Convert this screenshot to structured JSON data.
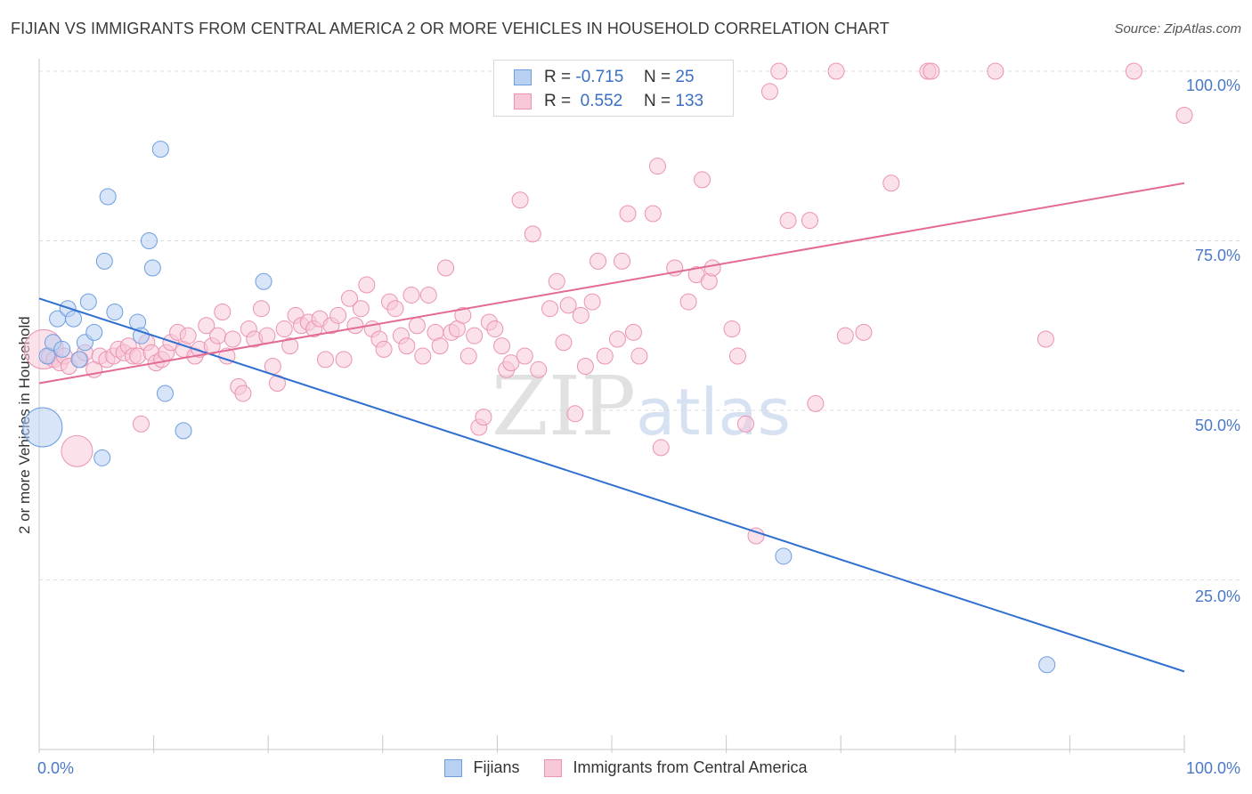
{
  "title": "FIJIAN VS IMMIGRANTS FROM CENTRAL AMERICA 2 OR MORE VEHICLES IN HOUSEHOLD CORRELATION CHART",
  "source": "Source: ZipAtlas.com",
  "watermark": "ZIPatlas",
  "legend_top": {
    "rows": [
      {
        "r_label": "R =",
        "r_value": "-0.715",
        "n_label": "N =",
        "n_value": "25"
      },
      {
        "r_label": "R =",
        "r_value": "0.552",
        "n_label": "N =",
        "n_value": "133"
      }
    ]
  },
  "legend_bottom": {
    "items": [
      "Fijians",
      "Immigrants from Central America"
    ]
  },
  "colors": {
    "blue_fill": "#b8d0f2",
    "blue_stroke": "#6d9ee0",
    "blue_line": "#2f6fd1",
    "pink_fill": "#f8c8d8",
    "pink_stroke": "#eb93b1",
    "pink_line": "#e26a94",
    "tick": "#4a78c8",
    "grid": "#dddddd"
  },
  "chart_data": {
    "type": "scatter",
    "title": "FIJIAN VS IMMIGRANTS FROM CENTRAL AMERICA 2 OR MORE VEHICLES IN HOUSEHOLD CORRELATION CHART",
    "xlabel": "",
    "ylabel": "2 or more Vehicles in Household",
    "xlim": [
      0,
      100
    ],
    "ylim": [
      0,
      102
    ],
    "x_tick_labels": [
      "0.0%",
      "100.0%"
    ],
    "y_ticks": [
      25,
      50,
      75,
      100
    ],
    "y_tick_labels": [
      "25.0%",
      "50.0%",
      "75.0%",
      "100.0%"
    ],
    "grid": true,
    "series": [
      {
        "name": "Fijians",
        "r": -0.715,
        "n": 25,
        "trend": [
          [
            0,
            66.5
          ],
          [
            100,
            11.5
          ]
        ],
        "points": [
          [
            0.3,
            47.5,
            2
          ],
          [
            0.7,
            58.0,
            1
          ],
          [
            1.2,
            60.0,
            1
          ],
          [
            1.6,
            63.5,
            1
          ],
          [
            2.0,
            59.0,
            1
          ],
          [
            2.5,
            65.0,
            1
          ],
          [
            3.0,
            63.5,
            1
          ],
          [
            3.5,
            57.5,
            1
          ],
          [
            4.0,
            60.0,
            1
          ],
          [
            4.3,
            66.0,
            1
          ],
          [
            4.8,
            61.5,
            1
          ],
          [
            5.5,
            43.0,
            1
          ],
          [
            5.7,
            72.0,
            1
          ],
          [
            6.0,
            81.5,
            1
          ],
          [
            6.6,
            64.5,
            1
          ],
          [
            8.6,
            63.0,
            1
          ],
          [
            8.9,
            61.0,
            1
          ],
          [
            9.6,
            75.0,
            1
          ],
          [
            9.9,
            71.0,
            1
          ],
          [
            10.6,
            88.5,
            1
          ],
          [
            11.0,
            52.5,
            1
          ],
          [
            12.6,
            47.0,
            1
          ],
          [
            19.6,
            69.0,
            1
          ],
          [
            65.0,
            28.5,
            1
          ],
          [
            88.0,
            12.5,
            1
          ]
        ]
      },
      {
        "name": "Immigrants from Central America",
        "r": 0.552,
        "n": 133,
        "trend": [
          [
            0,
            54.0
          ],
          [
            100,
            83.5
          ]
        ],
        "points": [
          [
            0.4,
            59.0,
            2
          ],
          [
            0.9,
            58.0,
            1
          ],
          [
            1.3,
            57.5,
            1
          ],
          [
            1.8,
            57.0,
            1
          ],
          [
            2.2,
            58.0,
            1
          ],
          [
            2.6,
            56.5,
            1
          ],
          [
            3.3,
            44.0,
            1.5
          ],
          [
            3.6,
            57.5,
            1
          ],
          [
            4.0,
            58.5,
            1
          ],
          [
            4.8,
            56.0,
            1
          ],
          [
            5.3,
            58.0,
            1
          ],
          [
            5.9,
            57.5,
            1
          ],
          [
            6.5,
            58.0,
            1
          ],
          [
            6.9,
            59.0,
            1
          ],
          [
            7.4,
            58.5,
            1
          ],
          [
            7.8,
            59.5,
            1
          ],
          [
            8.2,
            58.0,
            1
          ],
          [
            8.6,
            58.0,
            1
          ],
          [
            8.9,
            48.0,
            1
          ],
          [
            9.4,
            60.0,
            1
          ],
          [
            9.8,
            58.5,
            1
          ],
          [
            10.2,
            57.0,
            1
          ],
          [
            10.7,
            57.5,
            1
          ],
          [
            11.1,
            58.5,
            1
          ],
          [
            11.5,
            60.0,
            1
          ],
          [
            12.1,
            61.5,
            1
          ],
          [
            12.6,
            59.0,
            1
          ],
          [
            13.0,
            61.0,
            1
          ],
          [
            13.6,
            58.0,
            1
          ],
          [
            14.0,
            59.0,
            1
          ],
          [
            14.6,
            62.5,
            1
          ],
          [
            15.1,
            59.5,
            1
          ],
          [
            15.6,
            61.0,
            1
          ],
          [
            16.0,
            64.5,
            1
          ],
          [
            16.4,
            58.0,
            1
          ],
          [
            16.9,
            60.5,
            1
          ],
          [
            17.4,
            53.5,
            1
          ],
          [
            17.8,
            52.5,
            1
          ],
          [
            18.3,
            62.0,
            1
          ],
          [
            18.8,
            60.5,
            1
          ],
          [
            19.4,
            65.0,
            1
          ],
          [
            19.9,
            61.0,
            1
          ],
          [
            20.4,
            56.5,
            1
          ],
          [
            20.8,
            54.0,
            1
          ],
          [
            21.4,
            62.0,
            1
          ],
          [
            21.9,
            59.5,
            1
          ],
          [
            22.4,
            64.0,
            1
          ],
          [
            22.9,
            62.5,
            1
          ],
          [
            23.5,
            63.0,
            1
          ],
          [
            24.0,
            62.0,
            1
          ],
          [
            24.5,
            63.5,
            1
          ],
          [
            25.0,
            57.5,
            1
          ],
          [
            25.5,
            62.5,
            1
          ],
          [
            26.1,
            64.0,
            1
          ],
          [
            26.6,
            57.5,
            1
          ],
          [
            27.1,
            66.5,
            1
          ],
          [
            27.6,
            62.5,
            1
          ],
          [
            28.1,
            65.0,
            1
          ],
          [
            28.6,
            68.5,
            1
          ],
          [
            29.1,
            62.0,
            1
          ],
          [
            29.7,
            60.5,
            1
          ],
          [
            30.1,
            59.0,
            1
          ],
          [
            30.6,
            66.0,
            1
          ],
          [
            31.1,
            65.0,
            1
          ],
          [
            31.6,
            61.0,
            1
          ],
          [
            32.1,
            59.5,
            1
          ],
          [
            32.5,
            67.0,
            1
          ],
          [
            33.0,
            62.5,
            1
          ],
          [
            33.5,
            58.0,
            1
          ],
          [
            34.0,
            67.0,
            1
          ],
          [
            34.6,
            61.5,
            1
          ],
          [
            35.0,
            59.5,
            1
          ],
          [
            35.5,
            71.0,
            1
          ],
          [
            36.0,
            61.5,
            1
          ],
          [
            36.5,
            62.0,
            1
          ],
          [
            37.0,
            64.0,
            1
          ],
          [
            37.5,
            58.0,
            1
          ],
          [
            38.0,
            61.0,
            1
          ],
          [
            38.4,
            47.5,
            1
          ],
          [
            38.8,
            49.0,
            1
          ],
          [
            39.3,
            63.0,
            1
          ],
          [
            39.8,
            62.0,
            1
          ],
          [
            40.4,
            59.5,
            1
          ],
          [
            40.8,
            56.0,
            1
          ],
          [
            41.2,
            57.0,
            1
          ],
          [
            42.0,
            81.0,
            1
          ],
          [
            42.4,
            58.0,
            1
          ],
          [
            43.1,
            76.0,
            1
          ],
          [
            43.6,
            56.0,
            1
          ],
          [
            44.6,
            65.0,
            1
          ],
          [
            45.2,
            69.0,
            1
          ],
          [
            45.8,
            60.0,
            1
          ],
          [
            46.2,
            65.5,
            1
          ],
          [
            46.8,
            49.5,
            1
          ],
          [
            47.3,
            64.0,
            1
          ],
          [
            47.7,
            56.5,
            1
          ],
          [
            48.3,
            66.0,
            1
          ],
          [
            48.8,
            72.0,
            1
          ],
          [
            49.4,
            58.0,
            1
          ],
          [
            50.5,
            60.5,
            1
          ],
          [
            50.9,
            72.0,
            1
          ],
          [
            51.4,
            79.0,
            1
          ],
          [
            51.9,
            61.5,
            1
          ],
          [
            52.4,
            58.0,
            1
          ],
          [
            53.6,
            79.0,
            1
          ],
          [
            54.0,
            86.0,
            1
          ],
          [
            54.3,
            44.5,
            1
          ],
          [
            55.5,
            71.0,
            1
          ],
          [
            56.1,
            100.0,
            1
          ],
          [
            56.7,
            66.0,
            1
          ],
          [
            57.4,
            70.0,
            1
          ],
          [
            57.9,
            84.0,
            1
          ],
          [
            58.5,
            69.0,
            1
          ],
          [
            58.8,
            71.0,
            1
          ],
          [
            60.5,
            62.0,
            1
          ],
          [
            61.0,
            58.0,
            1
          ],
          [
            61.7,
            48.0,
            1
          ],
          [
            62.6,
            31.5,
            1
          ],
          [
            63.8,
            97.0,
            1
          ],
          [
            64.6,
            100.0,
            1
          ],
          [
            65.4,
            78.0,
            1
          ],
          [
            67.3,
            78.0,
            1
          ],
          [
            67.8,
            51.0,
            1
          ],
          [
            69.6,
            100.0,
            1
          ],
          [
            70.4,
            61.0,
            1
          ],
          [
            72.0,
            61.5,
            1
          ],
          [
            74.4,
            83.5,
            1
          ],
          [
            77.6,
            100.0,
            1
          ],
          [
            77.9,
            100.0,
            1
          ],
          [
            83.5,
            100.0,
            1
          ],
          [
            87.9,
            60.5,
            1
          ],
          [
            95.6,
            100.0,
            1
          ],
          [
            100.0,
            93.5,
            1
          ]
        ]
      }
    ]
  }
}
